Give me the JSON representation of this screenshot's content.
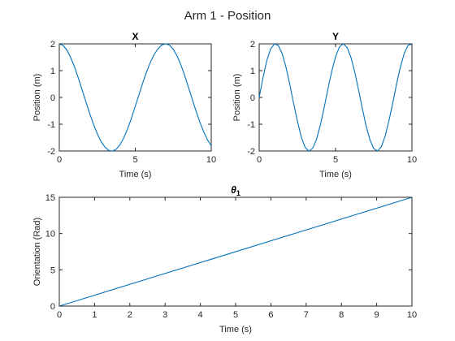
{
  "figure_title": "Arm 1 - Position",
  "colors": {
    "line": "#0072BD",
    "axis": "#262626",
    "background": "#ffffff"
  },
  "chart_data": [
    {
      "type": "line",
      "title": "X",
      "xlabel": "Time (s)",
      "ylabel": "Position (m)",
      "xlim": [
        0,
        10
      ],
      "ylim": [
        -2,
        2
      ],
      "xticks": [
        "0",
        "5",
        "10"
      ],
      "yticks": [
        "-2",
        "-1",
        "0",
        "1",
        "2"
      ],
      "grid": false,
      "legend": "none",
      "series": [
        {
          "x": [
            0,
            0.25,
            0.5,
            0.75,
            1,
            1.25,
            1.5,
            1.75,
            2,
            2.25,
            2.5,
            2.75,
            3,
            3.25,
            3.5,
            3.75,
            4,
            4.25,
            4.5,
            4.75,
            5,
            5.25,
            5.5,
            5.75,
            6,
            6.25,
            6.5,
            6.75,
            7,
            7.25,
            7.5,
            7.75,
            8,
            8.25,
            8.5,
            8.75,
            9,
            9.25,
            9.5,
            9.75,
            10
          ],
          "y": [
            2.0,
            1.94,
            1.77,
            1.49,
            1.14,
            0.73,
            0.29,
            -0.16,
            -0.6,
            -1.0,
            -1.36,
            -1.65,
            -1.85,
            -1.98,
            -2.0,
            -1.93,
            -1.76,
            -1.5,
            -1.17,
            -0.77,
            -0.33,
            0.11,
            0.56,
            0.96,
            1.32,
            1.61,
            1.82,
            1.96,
            2.0,
            1.95,
            1.8,
            1.55,
            1.22,
            0.82,
            0.38,
            -0.07,
            -0.51,
            -0.92,
            -1.28,
            -1.58,
            -1.8
          ]
        }
      ]
    },
    {
      "type": "line",
      "title": "Y",
      "xlabel": "Time (s)",
      "ylabel": "Position (m)",
      "xlim": [
        0,
        10
      ],
      "ylim": [
        -2,
        2
      ],
      "xticks": [
        "0",
        "5",
        "10"
      ],
      "yticks": [
        "-2",
        "-1",
        "0",
        "1",
        "2"
      ],
      "grid": false,
      "legend": "none",
      "series": [
        {
          "x": [
            0,
            0.25,
            0.5,
            0.75,
            1,
            1.25,
            1.5,
            1.75,
            2,
            2.25,
            2.5,
            2.75,
            3,
            3.25,
            3.5,
            3.75,
            4,
            4.25,
            4.5,
            4.75,
            5,
            5.25,
            5.5,
            5.75,
            6,
            6.25,
            6.5,
            6.75,
            7,
            7.25,
            7.5,
            7.75,
            8,
            8.25,
            8.5,
            8.75,
            9,
            9.25,
            9.5,
            9.75,
            10
          ],
          "y": [
            0.0,
            0.74,
            1.38,
            1.81,
            2.0,
            1.94,
            1.64,
            1.14,
            0.5,
            -0.21,
            -0.88,
            -1.46,
            -1.86,
            -2.0,
            -1.9,
            -1.57,
            -1.04,
            -0.39,
            0.32,
            0.98,
            1.52,
            1.88,
            2.0,
            1.87,
            1.51,
            0.96,
            0.3,
            -0.41,
            -1.06,
            -1.58,
            -1.91,
            -2.0,
            -1.84,
            -1.44,
            -0.86,
            -0.19,
            0.52,
            1.15,
            1.65,
            1.95,
            1.99
          ]
        }
      ]
    },
    {
      "type": "line",
      "title": "θ1",
      "title_main": "θ",
      "title_sub": "1",
      "xlabel": "Time (s)",
      "ylabel": "Orientation (Rad)",
      "xlim": [
        0,
        10
      ],
      "ylim": [
        0,
        15
      ],
      "xticks": [
        "0",
        "1",
        "2",
        "3",
        "4",
        "5",
        "6",
        "7",
        "8",
        "9",
        "10"
      ],
      "yticks": [
        "0",
        "5",
        "10",
        "15"
      ],
      "grid": false,
      "legend": "none",
      "series": [
        {
          "x": [
            0,
            10
          ],
          "y": [
            0,
            15
          ]
        }
      ]
    }
  ]
}
